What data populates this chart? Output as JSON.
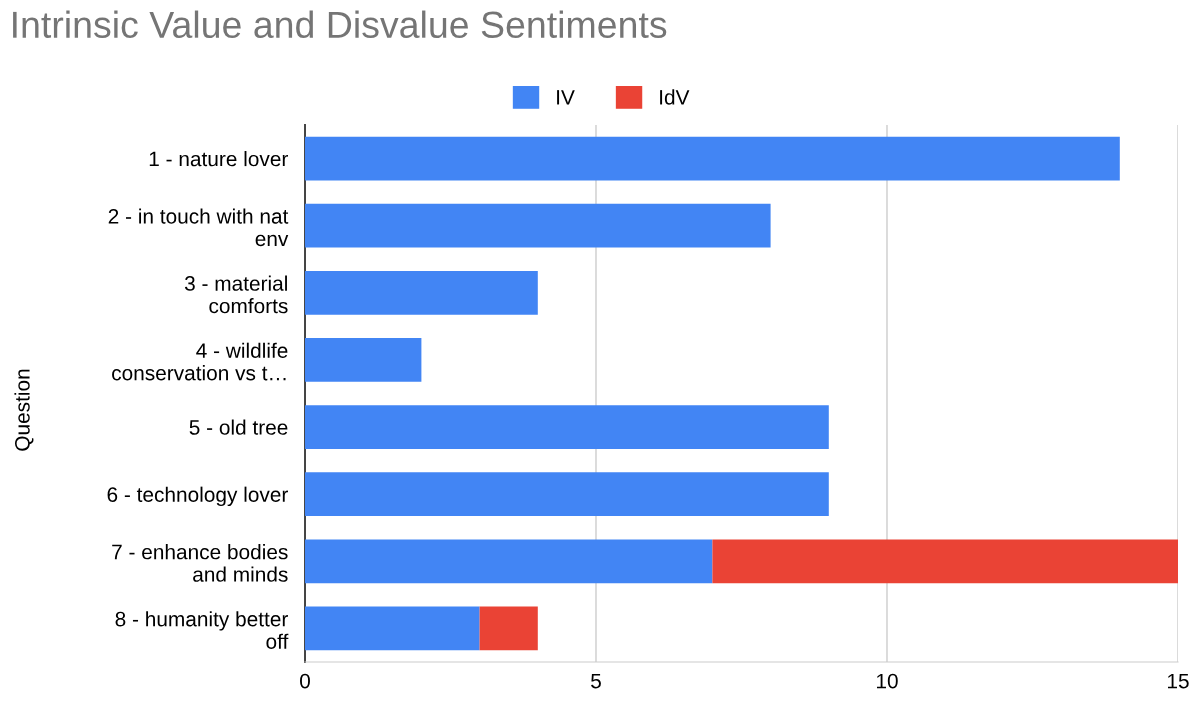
{
  "chart_data": {
    "type": "bar",
    "orientation": "horizontal",
    "stacked": true,
    "title": "Intrinsic Value and Disvalue Sentiments",
    "ylabel": "Question",
    "categories": [
      "1 - nature lover",
      "2 - in touch with nat\nenv",
      "3 - material\ncomforts",
      "4 - wildlife\nconservation vs t…",
      "5 - old tree",
      "6 - technology lover",
      "7 - enhance bodies\nand minds",
      "8 - humanity better\noff"
    ],
    "series": [
      {
        "name": "IV",
        "color": "#4285f4",
        "values": [
          14,
          8,
          4,
          2,
          9,
          9,
          7,
          3
        ]
      },
      {
        "name": "IdV",
        "color": "#ea4335",
        "values": [
          null,
          null,
          null,
          null,
          null,
          null,
          8,
          1
        ]
      }
    ],
    "xlim": [
      0,
      15
    ],
    "xticks": [
      0,
      5,
      10,
      15
    ],
    "grid": "x",
    "legend": "top"
  }
}
